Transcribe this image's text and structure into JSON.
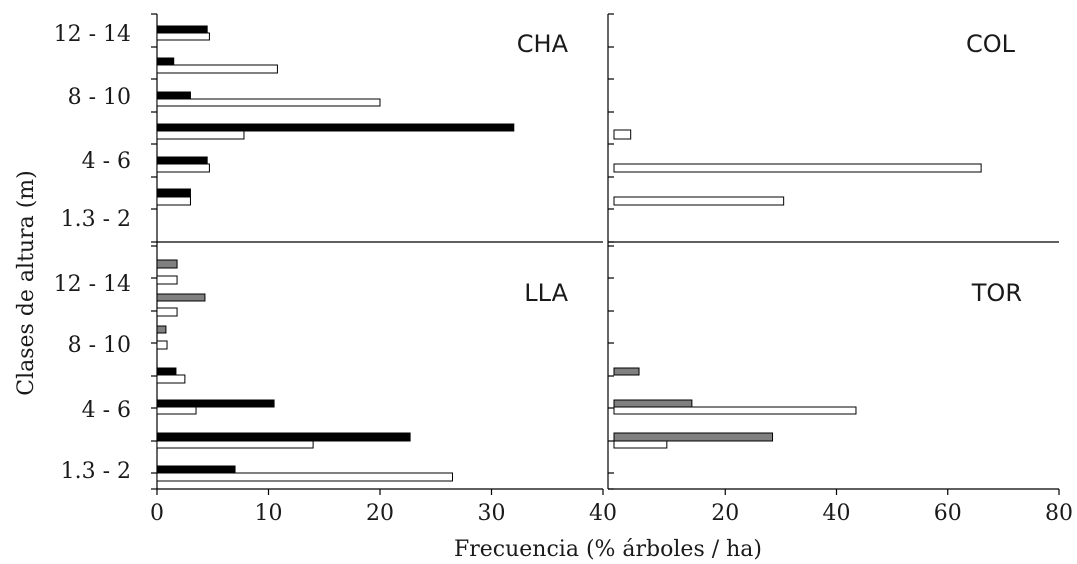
{
  "chart_data": {
    "type": "bar",
    "orientation": "horizontal",
    "xlabel": "Frecuencia (% árboles / ha)",
    "ylabel": "Clases de altura (m)",
    "colors": {
      "black": "#000000",
      "white": "#ffffff",
      "gray": "#808080"
    },
    "left_xlim": [
      0,
      40
    ],
    "left_xticks": [
      "0",
      "10",
      "20",
      "30",
      "40"
    ],
    "right_xlim": [
      0,
      80
    ],
    "right_xticks": [
      "20",
      "40",
      "60",
      "80"
    ],
    "y_tick_labels": [
      "1.3 - 2",
      "4 - 6",
      "8 - 10",
      "12 - 14"
    ],
    "panels": [
      {
        "id": "CHA",
        "label": "CHA",
        "position": "top-left",
        "series": [
          {
            "color": "black",
            "values": [
              3,
              32,
              3,
              1.5,
              4.5,
              3,
              4.5
            ]
          },
          {
            "color": "white",
            "values": [
              3,
              7.8,
              20,
              10.8,
              4.7,
              3,
              4.7
            ]
          }
        ]
      },
      {
        "id": "COL",
        "label": "COL",
        "position": "top-right",
        "series": [
          {
            "color": "white",
            "values": [
              3,
              66,
              30.5
            ]
          }
        ]
      },
      {
        "id": "LLA",
        "label": "LLA",
        "position": "bottom-left",
        "series": [
          {
            "color": "black",
            "values": [
              7,
              22.7,
              10.5,
              1.7
            ]
          },
          {
            "color": "white",
            "values": [
              26.5,
              14,
              3.5,
              2.5,
              0.9,
              1.8,
              1.8
            ]
          },
          {
            "color": "gray",
            "values": [
              0.8,
              4.3,
              1.8
            ]
          }
        ]
      },
      {
        "id": "TOR",
        "label": "TOR",
        "position": "bottom-right",
        "series": [
          {
            "color": "gray",
            "values": [
              28.5,
              14,
              4.5
            ]
          },
          {
            "color": "white",
            "values": [
              9.5,
              43.5
            ]
          }
        ]
      }
    ]
  }
}
